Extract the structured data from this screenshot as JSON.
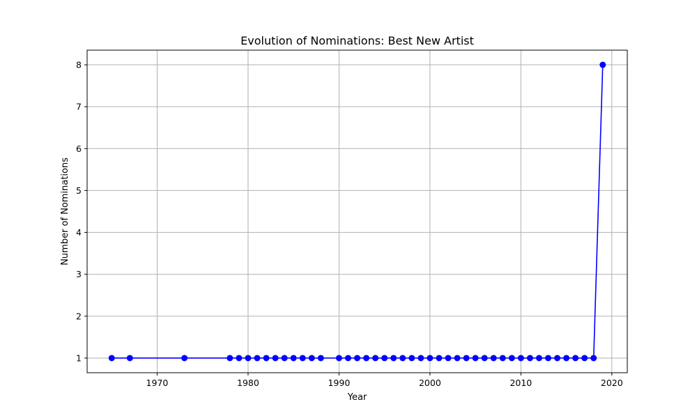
{
  "chart_data": {
    "type": "line",
    "title": "Evolution of Nominations: Best New Artist",
    "xlabel": "Year",
    "ylabel": "Number of Nominations",
    "xlim": [
      1962.3,
      2021.7
    ],
    "ylim": [
      0.65,
      8.35
    ],
    "xticks": [
      1970,
      1980,
      1990,
      2000,
      2010,
      2020
    ],
    "yticks": [
      1,
      2,
      3,
      4,
      5,
      6,
      7,
      8
    ],
    "grid": true,
    "series": [
      {
        "color": "#0000ff",
        "marker": "circle",
        "x": [
          1965,
          1967,
          1973,
          1978,
          1979,
          1980,
          1981,
          1982,
          1983,
          1984,
          1985,
          1986,
          1987,
          1988,
          1990,
          1991,
          1992,
          1993,
          1994,
          1995,
          1996,
          1997,
          1998,
          1999,
          2000,
          2001,
          2002,
          2003,
          2004,
          2005,
          2006,
          2007,
          2008,
          2009,
          2010,
          2011,
          2012,
          2013,
          2014,
          2015,
          2016,
          2017,
          2018,
          2019
        ],
        "y": [
          1,
          1,
          1,
          1,
          1,
          1,
          1,
          1,
          1,
          1,
          1,
          1,
          1,
          1,
          1,
          1,
          1,
          1,
          1,
          1,
          1,
          1,
          1,
          1,
          1,
          1,
          1,
          1,
          1,
          1,
          1,
          1,
          1,
          1,
          1,
          1,
          1,
          1,
          1,
          1,
          1,
          1,
          1,
          8
        ]
      }
    ]
  }
}
